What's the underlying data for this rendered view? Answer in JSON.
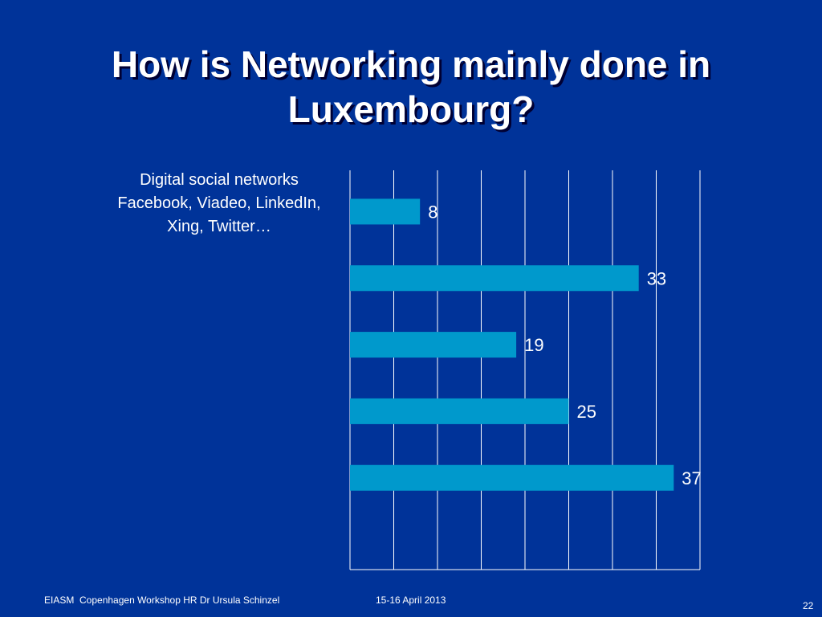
{
  "slide": {
    "title": "How is Networking mainly done in Luxembourg?",
    "footer_left": "EIASM  Copenhagen Workshop HR Dr Ursula Schinzel",
    "footer_date": "15-16 April 2013",
    "page_number": "22"
  },
  "colors": {
    "background": "#003399",
    "bar": "#0099CC",
    "grid": "#FFFFFF",
    "text": "#FFFFFF"
  },
  "chart_data": {
    "type": "bar",
    "orientation": "horizontal",
    "categories": [
      "Digital social networks\nFacebook, Viadeo, LinkedIn,\nXing, Twitter…",
      "",
      "",
      "",
      ""
    ],
    "values": [
      8,
      33,
      19,
      25,
      37
    ],
    "data_labels": [
      "8",
      "33",
      "19",
      "25",
      "37"
    ],
    "xlim": [
      0,
      40
    ],
    "grid": true,
    "legend": "none"
  }
}
